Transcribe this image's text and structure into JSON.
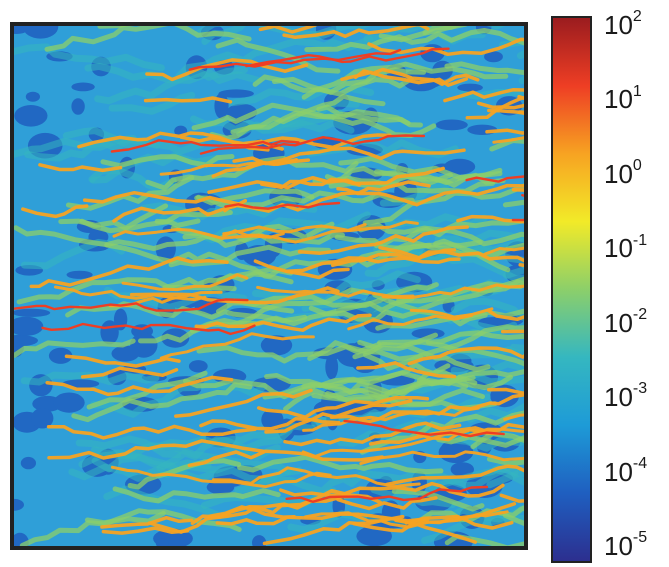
{
  "chart_data": {
    "type": "heatmap",
    "title": "",
    "xlabel": "",
    "ylabel": "",
    "colorbar": {
      "scale": "log",
      "range": [
        1e-05,
        100
      ],
      "ticks": [
        {
          "base": "10",
          "exp": "2",
          "value": 100
        },
        {
          "base": "10",
          "exp": "1",
          "value": 10
        },
        {
          "base": "10",
          "exp": "0",
          "value": 1
        },
        {
          "base": "10",
          "exp": "-1",
          "value": 0.1
        },
        {
          "base": "10",
          "exp": "-2",
          "value": 0.01
        },
        {
          "base": "10",
          "exp": "-3",
          "value": 0.001
        },
        {
          "base": "10",
          "exp": "-4",
          "value": 0.0001
        },
        {
          "base": "10",
          "exp": "-5",
          "value": 1e-05
        }
      ],
      "colors": [
        "#2c2f8f",
        "#1f5fc0",
        "#1e9bd7",
        "#35b7c0",
        "#8ccf6a",
        "#f2ea28",
        "#f7a322",
        "#ee3e24",
        "#9b1c1f"
      ]
    },
    "field_description_values": {
      "background_level": 0.001,
      "dark_patch_level": 0.0001,
      "ridge_level": 1,
      "peak_level": 100
    }
  }
}
